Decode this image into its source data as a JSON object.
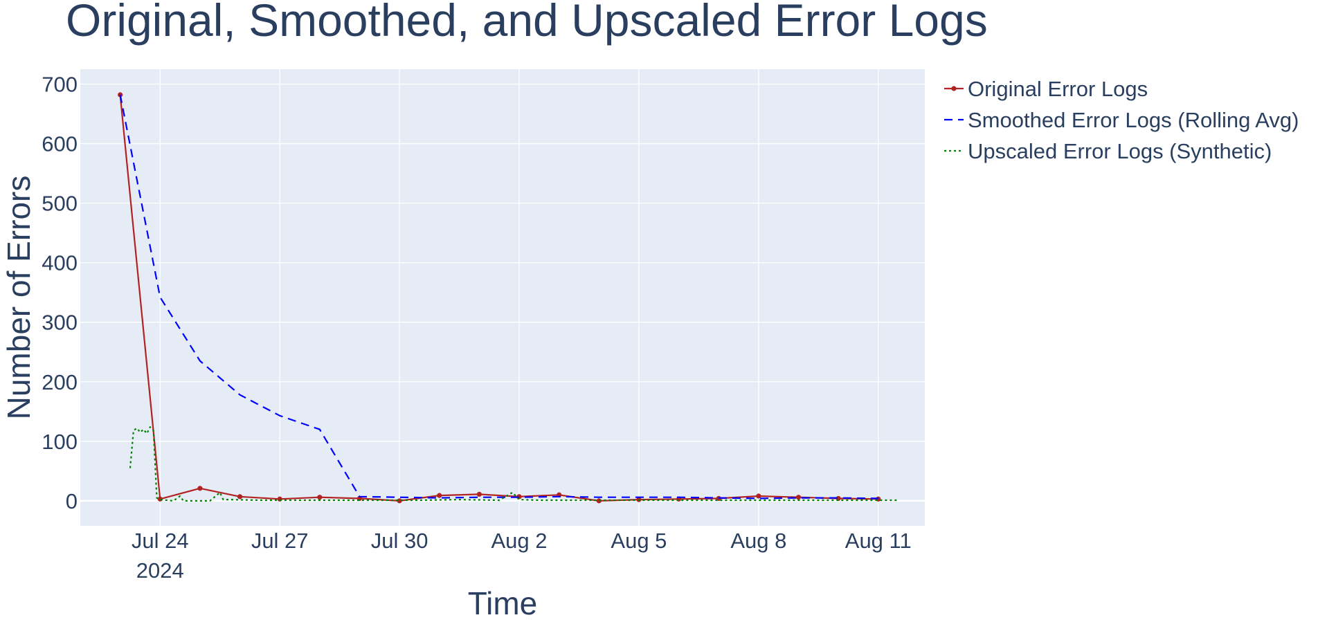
{
  "colors": {
    "plot_bg": "#e5ecf6",
    "grid": "#ffffff",
    "text": "#2a3f5f"
  },
  "chart_data": {
    "type": "line",
    "title": "Original, Smoothed, and Upscaled Error Logs",
    "xlabel": "Time",
    "ylabel": "Number of Errors",
    "x_type": "date",
    "x_ticks": [
      "Jul 24",
      "Jul 27",
      "Jul 30",
      "Aug 2",
      "Aug 5",
      "Aug 8",
      "Aug 11"
    ],
    "x_tick_dates": [
      "2024-07-24",
      "2024-07-27",
      "2024-07-30",
      "2024-08-02",
      "2024-08-05",
      "2024-08-08",
      "2024-08-11"
    ],
    "x_tick_year": "2024",
    "xlim": [
      "2024-07-22T00:00",
      "2024-08-12T04:00"
    ],
    "y_ticks": [
      0,
      100,
      200,
      300,
      400,
      500,
      600,
      700
    ],
    "ylim": [
      -42,
      725
    ],
    "grid": true,
    "legend_position": "right",
    "series": [
      {
        "name": "Original Error Logs",
        "color": "#b22222",
        "dash": "solid",
        "markers": true,
        "x": [
          "2024-07-23",
          "2024-07-24",
          "2024-07-25",
          "2024-07-26",
          "2024-07-27",
          "2024-07-28",
          "2024-07-29",
          "2024-07-30",
          "2024-07-31",
          "2024-08-01",
          "2024-08-02",
          "2024-08-03",
          "2024-08-04",
          "2024-08-05",
          "2024-08-06",
          "2024-08-07",
          "2024-08-08",
          "2024-08-09",
          "2024-08-10",
          "2024-08-11"
        ],
        "y": [
          682,
          3,
          21,
          7,
          3,
          6,
          4,
          0,
          9,
          11,
          7,
          10,
          0,
          2,
          3,
          4,
          8,
          6,
          4,
          3
        ]
      },
      {
        "name": "Smoothed Error Logs (Rolling Avg)",
        "color": "#0000ff",
        "dash": "dash",
        "markers": false,
        "x": [
          "2024-07-23",
          "2024-07-24",
          "2024-07-25",
          "2024-07-26",
          "2024-07-27",
          "2024-07-28",
          "2024-07-29",
          "2024-07-30",
          "2024-07-31",
          "2024-08-01",
          "2024-08-02",
          "2024-08-03",
          "2024-08-04",
          "2024-08-05",
          "2024-08-06",
          "2024-08-07",
          "2024-08-08",
          "2024-08-09",
          "2024-08-10",
          "2024-08-11"
        ],
        "y": [
          682,
          342,
          235,
          178,
          143,
          120,
          7,
          6,
          5,
          6,
          6,
          7,
          6,
          6,
          6,
          5,
          4,
          5,
          5,
          4
        ]
      },
      {
        "name": "Upscaled Error Logs (Synthetic)",
        "color": "#008000",
        "dash": "dot",
        "markers": false,
        "x": [
          "2024-07-23T06:00",
          "2024-07-23T08:00",
          "2024-07-23T10:00",
          "2024-07-23T12:00",
          "2024-07-23T14:00",
          "2024-07-23T16:00",
          "2024-07-23T18:00",
          "2024-07-23T20:00",
          "2024-07-23T22:00",
          "2024-07-24T00:00",
          "2024-07-24T08:00",
          "2024-07-24T12:00",
          "2024-07-24T14:00",
          "2024-07-24T18:00",
          "2024-07-25T06:00",
          "2024-07-25T12:00",
          "2024-07-25T14:00",
          "2024-07-25T18:00",
          "2024-07-26T12:00",
          "2024-07-27T12:00",
          "2024-07-28T12:00",
          "2024-07-29T12:00",
          "2024-07-30T12:00",
          "2024-07-31T12:00",
          "2024-08-01T12:00",
          "2024-08-01T20:00",
          "2024-08-02T00:00",
          "2024-08-02T12:00",
          "2024-08-03T12:00",
          "2024-08-04T12:00",
          "2024-08-05T12:00",
          "2024-08-06T12:00",
          "2024-08-07T12:00",
          "2024-08-08T12:00",
          "2024-08-09T12:00",
          "2024-08-10T12:00",
          "2024-08-11T12:00"
        ],
        "y": [
          55,
          118,
          122,
          115,
          120,
          113,
          124,
          118,
          5,
          2,
          0,
          8,
          0,
          0,
          0,
          14,
          2,
          2,
          1,
          1,
          1,
          1,
          1,
          2,
          1,
          14,
          2,
          1,
          1,
          1,
          1,
          1,
          1,
          1,
          1,
          1,
          1
        ]
      }
    ]
  }
}
